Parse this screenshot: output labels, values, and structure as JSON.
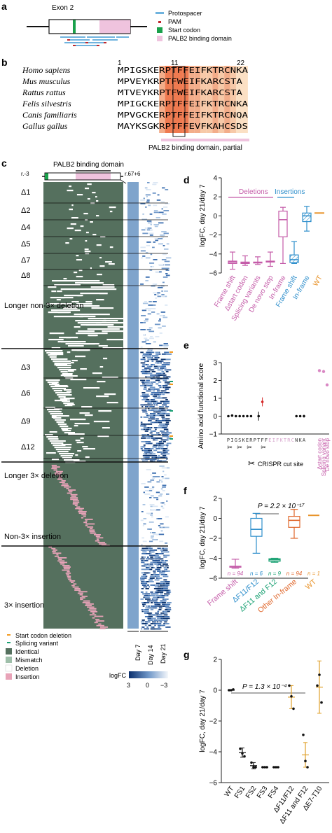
{
  "panels": {
    "a": {
      "letter": "a",
      "exon_label": "Exon 2",
      "legend": [
        "Protospacer",
        "PAM",
        "Start codon",
        "PALB2 binding domain"
      ],
      "colors": {
        "protospacer": "#6fb3de",
        "pam": "#c0272d",
        "start_codon": "#1aa14b",
        "palb2": "#efc3de"
      }
    },
    "b": {
      "letter": "b",
      "pos_labels": [
        "1",
        "11",
        "22"
      ],
      "species": [
        "Homo sapiens",
        "Mus musculus",
        "Rattus rattus",
        "Felis silvestris",
        "Canis familiaris",
        "Gallus gallus"
      ],
      "sequences": [
        "MPIGSKERPTFFEIFKTRCNKA",
        "MPVEYKRPTFWEIFKARCSTA",
        "MTVEYKRPTFWEIFKARCSTA",
        "MPIGCKERPTFFEIFKTRCNKA",
        "MPVGCKERPTFFEIFKTRCNQA",
        "MAYKSGKRPTFFEVFKAHCSDS"
      ],
      "domain_label": "PALB2 binding domain, partial"
    },
    "c": {
      "letter": "c",
      "top_label": "PALB2 binding domain",
      "left_pos": "r.-3",
      "right_pos": "r.67+6",
      "groups": [
        "Δ1",
        "Δ2",
        "Δ4",
        "Δ5",
        "Δ7",
        "Δ8",
        "Longer non-3× deletion",
        "Δ3",
        "Δ6",
        "Δ9",
        "Δ12",
        "Longer 3× deletion",
        "Non-3× insertion",
        "3× insertion"
      ],
      "day_labels": [
        "Day 7",
        "Day 14",
        "Day 21"
      ],
      "legend": [
        "Start codon deletion",
        "Splicing variant",
        "Identical",
        "Mismatch",
        "Deletion",
        "Insertion"
      ],
      "legend_colors": [
        "#f39a1f",
        "#1aa173",
        "#55705e",
        "#9fbfaa",
        "#ffffff",
        "#e8a3b8"
      ],
      "colorbar_title": "logFC",
      "colorbar_ticks": [
        "3",
        "0",
        "−3"
      ]
    },
    "d": {
      "letter": "d",
      "ylabel": "logFC, day 21/day 7",
      "group_labels": [
        "Deletions",
        "Insertions"
      ],
      "categories": [
        "Frame shift",
        "Δstart codon",
        "Splicing variants",
        "De novo stop",
        "In-frame",
        "Frame shift",
        "In-frame",
        "WT"
      ],
      "category_colors": [
        "#c45ba8",
        "#c45ba8",
        "#c45ba8",
        "#c45ba8",
        "#c45ba8",
        "#2f8fcc",
        "#2f8fcc",
        "#e8932a"
      ],
      "yticks": [
        "−6",
        "−4",
        "−2",
        "0",
        "2",
        "4"
      ]
    },
    "e": {
      "letter": "e",
      "ylabel": "Amino acid functional score",
      "yticks": [
        "−1",
        "0",
        "1",
        "2",
        "3"
      ],
      "residues": [
        "P",
        "I",
        "G",
        "S",
        "K",
        "E",
        "R",
        "P",
        "T",
        "F",
        "F",
        "E",
        "I",
        "F",
        "K",
        "T",
        "R",
        "C",
        "N",
        "K",
        "A"
      ],
      "extra_labels": [
        "Δstart codon",
        "Splicing variant",
        "De novo stop"
      ],
      "cut_label": "CRISPR cut site"
    },
    "f": {
      "letter": "f",
      "ylabel": "logFC, day 21/day 7",
      "pvalue": "P = 2.2 × 10⁻¹⁷",
      "categories": [
        "Frame shift",
        "ΔF11/F12",
        "ΔF11 and F12",
        "Other In-frame",
        "WT"
      ],
      "category_colors": [
        "#c45ba8",
        "#2f8fcc",
        "#1aa173",
        "#e0662a",
        "#e8932a"
      ],
      "n_labels": [
        "n = 94",
        "n = 6",
        "n = 9",
        "n = 94",
        "n = 1"
      ],
      "yticks": [
        "−6",
        "−4",
        "−2",
        "0",
        "2"
      ]
    },
    "g": {
      "letter": "g",
      "ylabel": "logFC, day 21/day 7",
      "pvalue": "P = 1.3 × 10⁻⁴",
      "categories": [
        "WT",
        "FS1",
        "FS2",
        "FS3",
        "FS4",
        "ΔF11/F12",
        "ΔF11 and F12",
        "ΔE7-T10"
      ],
      "yticks": [
        "−6",
        "−4",
        "−2",
        "0",
        "2"
      ]
    }
  },
  "chart_data": [
    {
      "type": "box",
      "panel": "d",
      "categories": [
        "Frame shift",
        "Δstart codon",
        "Splicing variants",
        "De novo stop",
        "In-frame",
        "Frame shift",
        "In-frame",
        "WT"
      ],
      "ylim": [
        -6,
        4
      ],
      "boxes": [
        {
          "min": -5.6,
          "q1": -5.0,
          "median": -4.85,
          "q3": -4.75,
          "max": -3.8
        },
        {
          "min": -5.2,
          "q1": -5.0,
          "median": -4.95,
          "q3": -4.85,
          "max": -4.2
        },
        {
          "min": -5.1,
          "q1": -4.95,
          "median": -4.9,
          "q3": -4.85,
          "max": -4.3
        },
        {
          "min": -5.3,
          "q1": -4.85,
          "median": -4.8,
          "q3": -4.75,
          "max": -3.8
        },
        {
          "min": -5.0,
          "q1": -2.2,
          "median": -0.4,
          "q3": 0.5,
          "max": 0.9
        },
        {
          "min": -5.0,
          "q1": -4.9,
          "median": -4.6,
          "q3": -4.1,
          "max": -2.7
        },
        {
          "min": -1.6,
          "q1": -0.6,
          "median": 0.0,
          "q3": 0.3,
          "max": 1.0
        },
        {
          "min": 0.3,
          "q1": 0.3,
          "median": 0.3,
          "q3": 0.3,
          "max": 0.3
        }
      ]
    },
    {
      "type": "scatter",
      "panel": "e",
      "ylim": [
        -1,
        3
      ],
      "residue_scores": [
        0.0,
        0.03,
        0.0,
        0.0,
        0.0,
        0.0,
        0.0,
        null,
        0.0,
        0.8,
        null,
        null,
        null,
        null,
        null,
        null,
        null,
        null,
        0.0,
        0.0,
        0.0
      ],
      "residue_errors": [
        0.0,
        0.0,
        0.0,
        0.0,
        0.0,
        0.0,
        0.0,
        null,
        0.25,
        0.25,
        null,
        null,
        null,
        null,
        null,
        null,
        null,
        null,
        0.0,
        0.0,
        0.08
      ],
      "extra_scores": [
        2.55,
        2.5,
        1.75
      ]
    },
    {
      "type": "box",
      "panel": "f",
      "categories": [
        "Frame shift",
        "ΔF11/F12",
        "ΔF11 and F12",
        "Other In-frame",
        "WT"
      ],
      "ylim": [
        -6,
        2
      ],
      "boxes": [
        {
          "min": -5.0,
          "q1": -4.9,
          "median": -4.85,
          "q3": -4.8,
          "max": -4.1
        },
        {
          "min": -3.5,
          "q1": -1.8,
          "median": -1.1,
          "q3": 0.0,
          "max": 0.5
        },
        {
          "min": -4.4,
          "q1": -4.3,
          "median": -4.15,
          "q3": -4.05,
          "max": -4.0
        },
        {
          "min": -2.0,
          "q1": -0.9,
          "median": -0.2,
          "q3": 0.2,
          "max": 0.9
        },
        {
          "min": 0.3,
          "q1": 0.3,
          "median": 0.3,
          "q3": 0.3,
          "max": 0.3
        }
      ]
    },
    {
      "type": "scatter",
      "panel": "g",
      "categories": [
        "WT",
        "FS1",
        "FS2",
        "FS3",
        "FS4",
        "ΔF11/F12",
        "ΔF11 and F12",
        "ΔE7-T10"
      ],
      "ylim": [
        -6,
        2
      ],
      "points": [
        [
          0.0,
          0.0,
          0.05
        ],
        [
          -3.8,
          -4.1,
          -4.3
        ],
        [
          -4.7,
          -5.0,
          -5.0
        ],
        [
          -5.0,
          -5.0,
          -5.0
        ],
        [
          -5.0,
          -5.0,
          -5.0
        ],
        [
          0.3,
          -0.4,
          -1.2
        ],
        [
          -2.9,
          -4.6,
          -5.0
        ],
        [
          0.3,
          1.0,
          -0.8
        ]
      ],
      "means": [
        0.0,
        -4.05,
        -4.9,
        -5.0,
        -5.0,
        -0.45,
        -4.2,
        0.2
      ],
      "errors": [
        0.0,
        0.3,
        0.2,
        0.0,
        0.0,
        0.75,
        0.8,
        1.7
      ]
    }
  ]
}
